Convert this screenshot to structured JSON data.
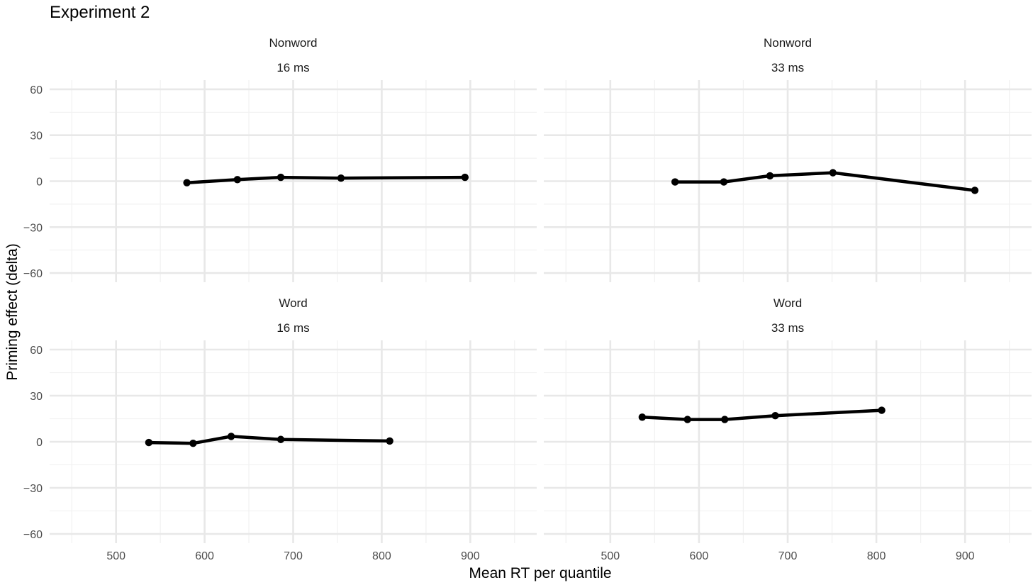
{
  "chart_data": {
    "type": "line",
    "title": "Experiment 2",
    "xlabel": "Mean RT per quantile",
    "ylabel": "Priming effect (delta)",
    "xlim": [
      425,
      975
    ],
    "ylim": [
      -66,
      66
    ],
    "x_ticks": [
      500,
      600,
      700,
      800,
      900
    ],
    "y_ticks": [
      -60,
      -30,
      0,
      30,
      60
    ],
    "y_tick_labels": [
      "−60",
      "−30",
      "0",
      "30",
      "60"
    ],
    "grid": true,
    "legend": "none",
    "line_color": "#000000",
    "panels": [
      {
        "strip_top": "Nonword",
        "strip_bottom": "16 ms",
        "x": [
          580,
          637,
          686,
          754,
          894
        ],
        "y": [
          -1,
          1,
          2.5,
          2,
          2.5
        ]
      },
      {
        "strip_top": "Nonword",
        "strip_bottom": "33 ms",
        "x": [
          573,
          628,
          680,
          751,
          911
        ],
        "y": [
          -0.5,
          -0.5,
          3.5,
          5.5,
          -6
        ]
      },
      {
        "strip_top": "Word",
        "strip_bottom": "16 ms",
        "x": [
          537,
          587,
          630,
          686,
          809
        ],
        "y": [
          -0.5,
          -1,
          3.5,
          1.5,
          0.5
        ]
      },
      {
        "strip_top": "Word",
        "strip_bottom": "33 ms",
        "x": [
          536,
          587,
          629,
          686,
          806
        ],
        "y": [
          16,
          14.5,
          14.5,
          17,
          20.5
        ]
      }
    ]
  }
}
